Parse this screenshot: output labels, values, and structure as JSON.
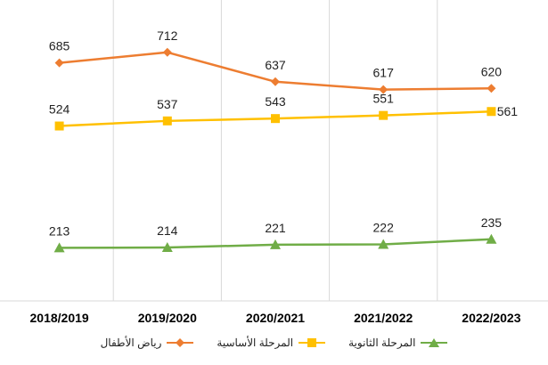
{
  "chart_data": {
    "type": "line",
    "categories": [
      "2018/2019",
      "2019/2020",
      "2020/2021",
      "2021/2022",
      "2022/2023"
    ],
    "series": [
      {
        "name": "رياض الأطفال",
        "values": [
          685,
          712,
          637,
          617,
          620
        ],
        "color": "#ED7D31",
        "marker": "diamond"
      },
      {
        "name": "المرحلة الأساسية",
        "values": [
          524,
          537,
          543,
          551,
          561
        ],
        "color": "#FFC000",
        "marker": "square"
      },
      {
        "name": "المرحلة الثانوية",
        "values": [
          213,
          214,
          221,
          222,
          235
        ],
        "color": "#70AD47",
        "marker": "triangle"
      }
    ],
    "ylim": [
      0,
      800
    ],
    "grid": "vertical",
    "legend_position": "bottom"
  }
}
